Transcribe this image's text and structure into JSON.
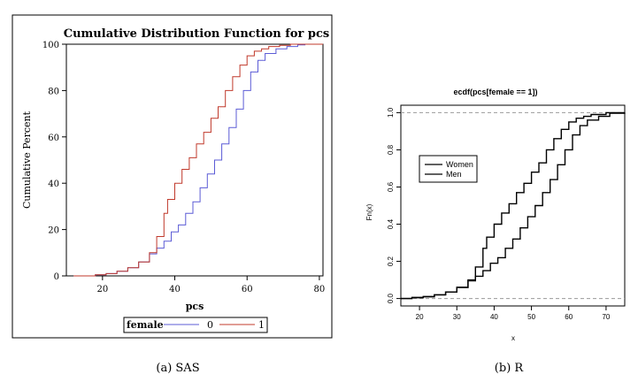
{
  "captions": {
    "a": "(a)  SAS",
    "b": "(b)  R"
  },
  "colors": {
    "sas_female_0": "#5b5bd6",
    "sas_female_1": "#c0392b",
    "r_lines": "#000000",
    "r_reference": "#9a9a9a"
  },
  "chart_data": [
    {
      "type": "line",
      "step": true,
      "title": "Cumulative Distribution Function for pcs",
      "xlabel": "pcs",
      "ylabel": "Cumulative Percent",
      "xlim": [
        10,
        81
      ],
      "ylim": [
        0,
        100
      ],
      "xticks": [
        20,
        40,
        60,
        80
      ],
      "yticks": [
        0,
        20,
        40,
        60,
        80,
        100
      ],
      "legend": {
        "title": "female",
        "placement": "bottom"
      },
      "series": [
        {
          "name": "0",
          "color": "#5b5bd6",
          "x": [
            12,
            18,
            21,
            24,
            27,
            30,
            33,
            35,
            37,
            39,
            41,
            43,
            45,
            47,
            49,
            51,
            53,
            55,
            57,
            59,
            61,
            63,
            65,
            68,
            71,
            74,
            76
          ],
          "y": [
            0,
            0.5,
            1,
            2,
            3.5,
            6,
            9.5,
            12,
            15,
            19,
            22,
            27,
            32,
            38,
            44,
            50,
            57,
            64,
            72,
            80,
            88,
            93,
            96,
            98,
            99,
            99.7,
            100
          ]
        },
        {
          "name": "1",
          "color": "#c0392b",
          "x": [
            12,
            18,
            21,
            24,
            27,
            30,
            33,
            35,
            37,
            38,
            40,
            42,
            44,
            46,
            48,
            50,
            52,
            54,
            56,
            58,
            60,
            62,
            64,
            66,
            69,
            72,
            75,
            78,
            81
          ],
          "y": [
            0,
            0.5,
            1,
            2,
            3.5,
            6,
            10,
            17,
            27,
            33,
            40,
            46,
            51,
            57,
            62,
            68,
            73,
            80,
            86,
            91,
            95,
            97,
            98,
            99,
            99.5,
            100,
            100,
            100,
            100
          ]
        }
      ]
    },
    {
      "type": "line",
      "step": true,
      "title": "ecdf(pcs[female == 1])",
      "xlabel": "x",
      "ylabel": "Fn(x)",
      "xlim": [
        15,
        75
      ],
      "ylim": [
        0,
        1
      ],
      "xticks": [
        20,
        30,
        40,
        50,
        60,
        70
      ],
      "yticks": [
        0.0,
        0.2,
        0.4,
        0.6,
        0.8,
        1.0
      ],
      "reference_lines": [
        0,
        1
      ],
      "legend": {
        "placement": "top-left",
        "entries": [
          "Women",
          "Men"
        ]
      },
      "series": [
        {
          "name": "Women",
          "color": "#000000",
          "x": [
            15,
            18,
            21,
            24,
            27,
            30,
            33,
            35,
            37,
            38,
            40,
            42,
            44,
            46,
            48,
            50,
            52,
            54,
            56,
            58,
            60,
            62,
            64,
            66,
            70,
            75
          ],
          "y": [
            0,
            0.005,
            0.01,
            0.02,
            0.035,
            0.06,
            0.1,
            0.17,
            0.27,
            0.33,
            0.4,
            0.46,
            0.51,
            0.57,
            0.62,
            0.68,
            0.73,
            0.8,
            0.86,
            0.91,
            0.95,
            0.97,
            0.98,
            0.99,
            1.0,
            1.0
          ]
        },
        {
          "name": "Men",
          "color": "#000000",
          "x": [
            15,
            18,
            21,
            24,
            27,
            30,
            33,
            35,
            37,
            39,
            41,
            43,
            45,
            47,
            49,
            51,
            53,
            55,
            57,
            59,
            61,
            63,
            65,
            68,
            71,
            75
          ],
          "y": [
            0,
            0.005,
            0.01,
            0.02,
            0.035,
            0.06,
            0.095,
            0.12,
            0.15,
            0.19,
            0.22,
            0.27,
            0.32,
            0.38,
            0.44,
            0.5,
            0.57,
            0.64,
            0.72,
            0.8,
            0.88,
            0.93,
            0.96,
            0.98,
            0.997,
            1.0
          ]
        }
      ]
    }
  ]
}
